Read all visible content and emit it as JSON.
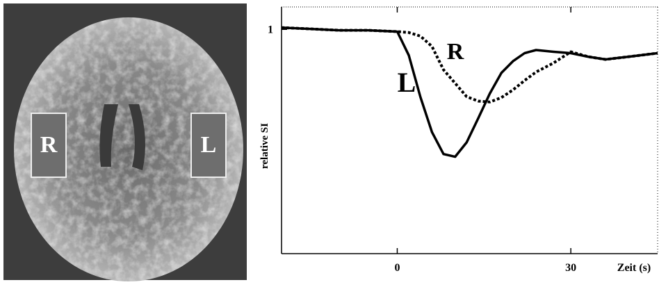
{
  "image_labels": [
    "R",
    "L"
  ],
  "chart_data": {
    "type": "line",
    "x_label": "Zeit (s)",
    "y_label": "relative SI",
    "x": [
      -20,
      -15,
      -10,
      -5,
      0,
      2,
      4,
      6,
      8,
      10,
      12,
      14,
      16,
      18,
      20,
      22,
      24,
      27,
      30,
      33,
      36,
      40,
      45
    ],
    "series": [
      {
        "name": "L",
        "color": "#000000",
        "style": "solid",
        "values": [
          1.004,
          1.001,
          0.998,
          0.998,
          0.995,
          0.942,
          0.849,
          0.771,
          0.722,
          0.716,
          0.748,
          0.802,
          0.857,
          0.903,
          0.929,
          0.947,
          0.954,
          0.95,
          0.947,
          0.939,
          0.933,
          0.939,
          0.947
        ]
      },
      {
        "name": "R",
        "color": "#000000",
        "style": "dotted",
        "values": [
          1.004,
          1.001,
          0.998,
          0.998,
          0.995,
          0.993,
          0.985,
          0.962,
          0.91,
          0.88,
          0.85,
          0.84,
          0.838,
          0.848,
          0.865,
          0.886,
          0.905,
          0.925,
          0.95,
          0.939,
          0.933,
          0.939,
          0.947
        ]
      }
    ],
    "xlim": [
      -20,
      45
    ],
    "ylim": [
      0.5,
      1.05
    ],
    "xticks": [
      0,
      30
    ],
    "yticks": [
      1
    ]
  }
}
